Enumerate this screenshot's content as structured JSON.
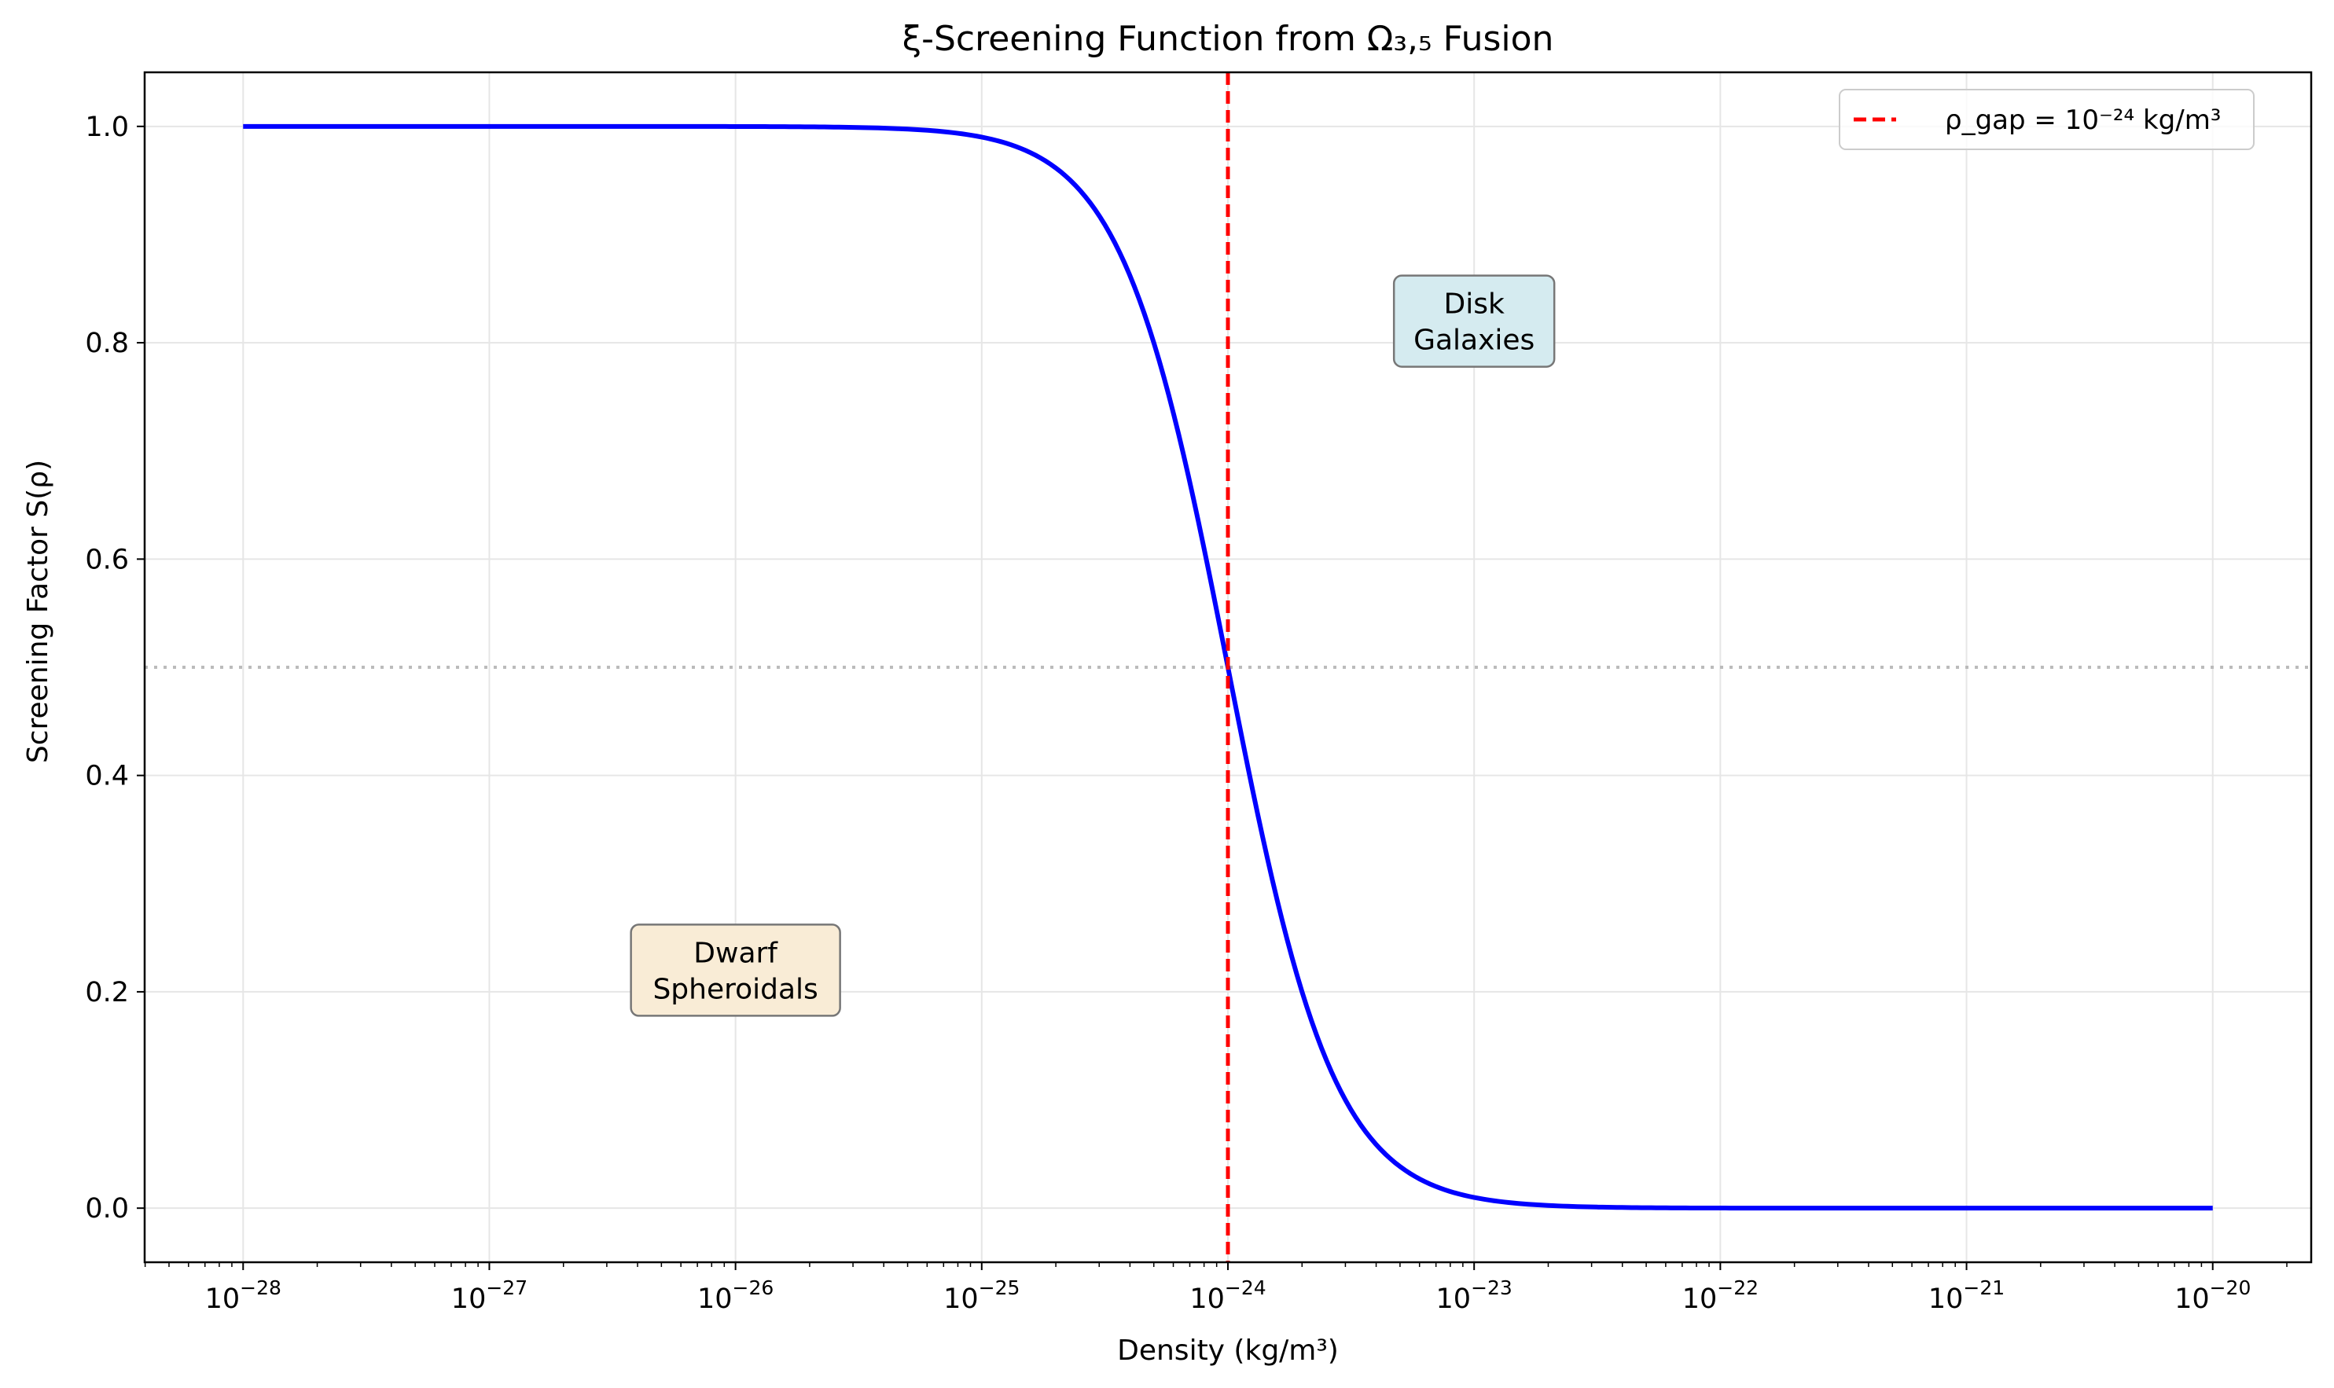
{
  "chart_data": {
    "type": "line",
    "title": "ξ-Screening Function from Ω₃,₅ Fusion",
    "xlabel": "Density (kg/m³)",
    "ylabel": "Screening Factor S(ρ)",
    "xscale": "log",
    "x_log10_range": [
      -28,
      -20
    ],
    "xlim_log10": [
      -28.4,
      -19.6
    ],
    "ylim": [
      -0.05,
      1.05
    ],
    "grid": true,
    "legend_position": "top-right",
    "x_ticks": [
      {
        "base": "10",
        "exp": "−28"
      },
      {
        "base": "10",
        "exp": "−27"
      },
      {
        "base": "10",
        "exp": "−26"
      },
      {
        "base": "10",
        "exp": "−25"
      },
      {
        "base": "10",
        "exp": "−24"
      },
      {
        "base": "10",
        "exp": "−23"
      },
      {
        "base": "10",
        "exp": "−22"
      },
      {
        "base": "10",
        "exp": "−21"
      },
      {
        "base": "10",
        "exp": "−20"
      }
    ],
    "y_ticks": [
      "0.0",
      "0.2",
      "0.4",
      "0.6",
      "0.8",
      "1.0"
    ],
    "series": [
      {
        "color": "#0000ff",
        "function": "S = 1 / (1 + (rho / 1e-24)^2)",
        "rho_gap": 1e-24
      }
    ],
    "vertical_line": {
      "x": 1e-24,
      "color": "#ff0000",
      "style": "dashed",
      "label": "ρ_gap = 10⁻²⁴ kg/m³"
    },
    "horizontal_line": {
      "y": 0.5,
      "color": "#bbbbbb",
      "style": "dotted"
    },
    "annotations": [
      {
        "lines": [
          "Disk",
          "Galaxies"
        ],
        "x": 1e-23,
        "y": 0.82,
        "bg": "#d5ebf0"
      },
      {
        "lines": [
          "Dwarf",
          "Spheroidals"
        ],
        "x": 1e-26,
        "y": 0.22,
        "bg": "#f9ecd6"
      }
    ]
  }
}
